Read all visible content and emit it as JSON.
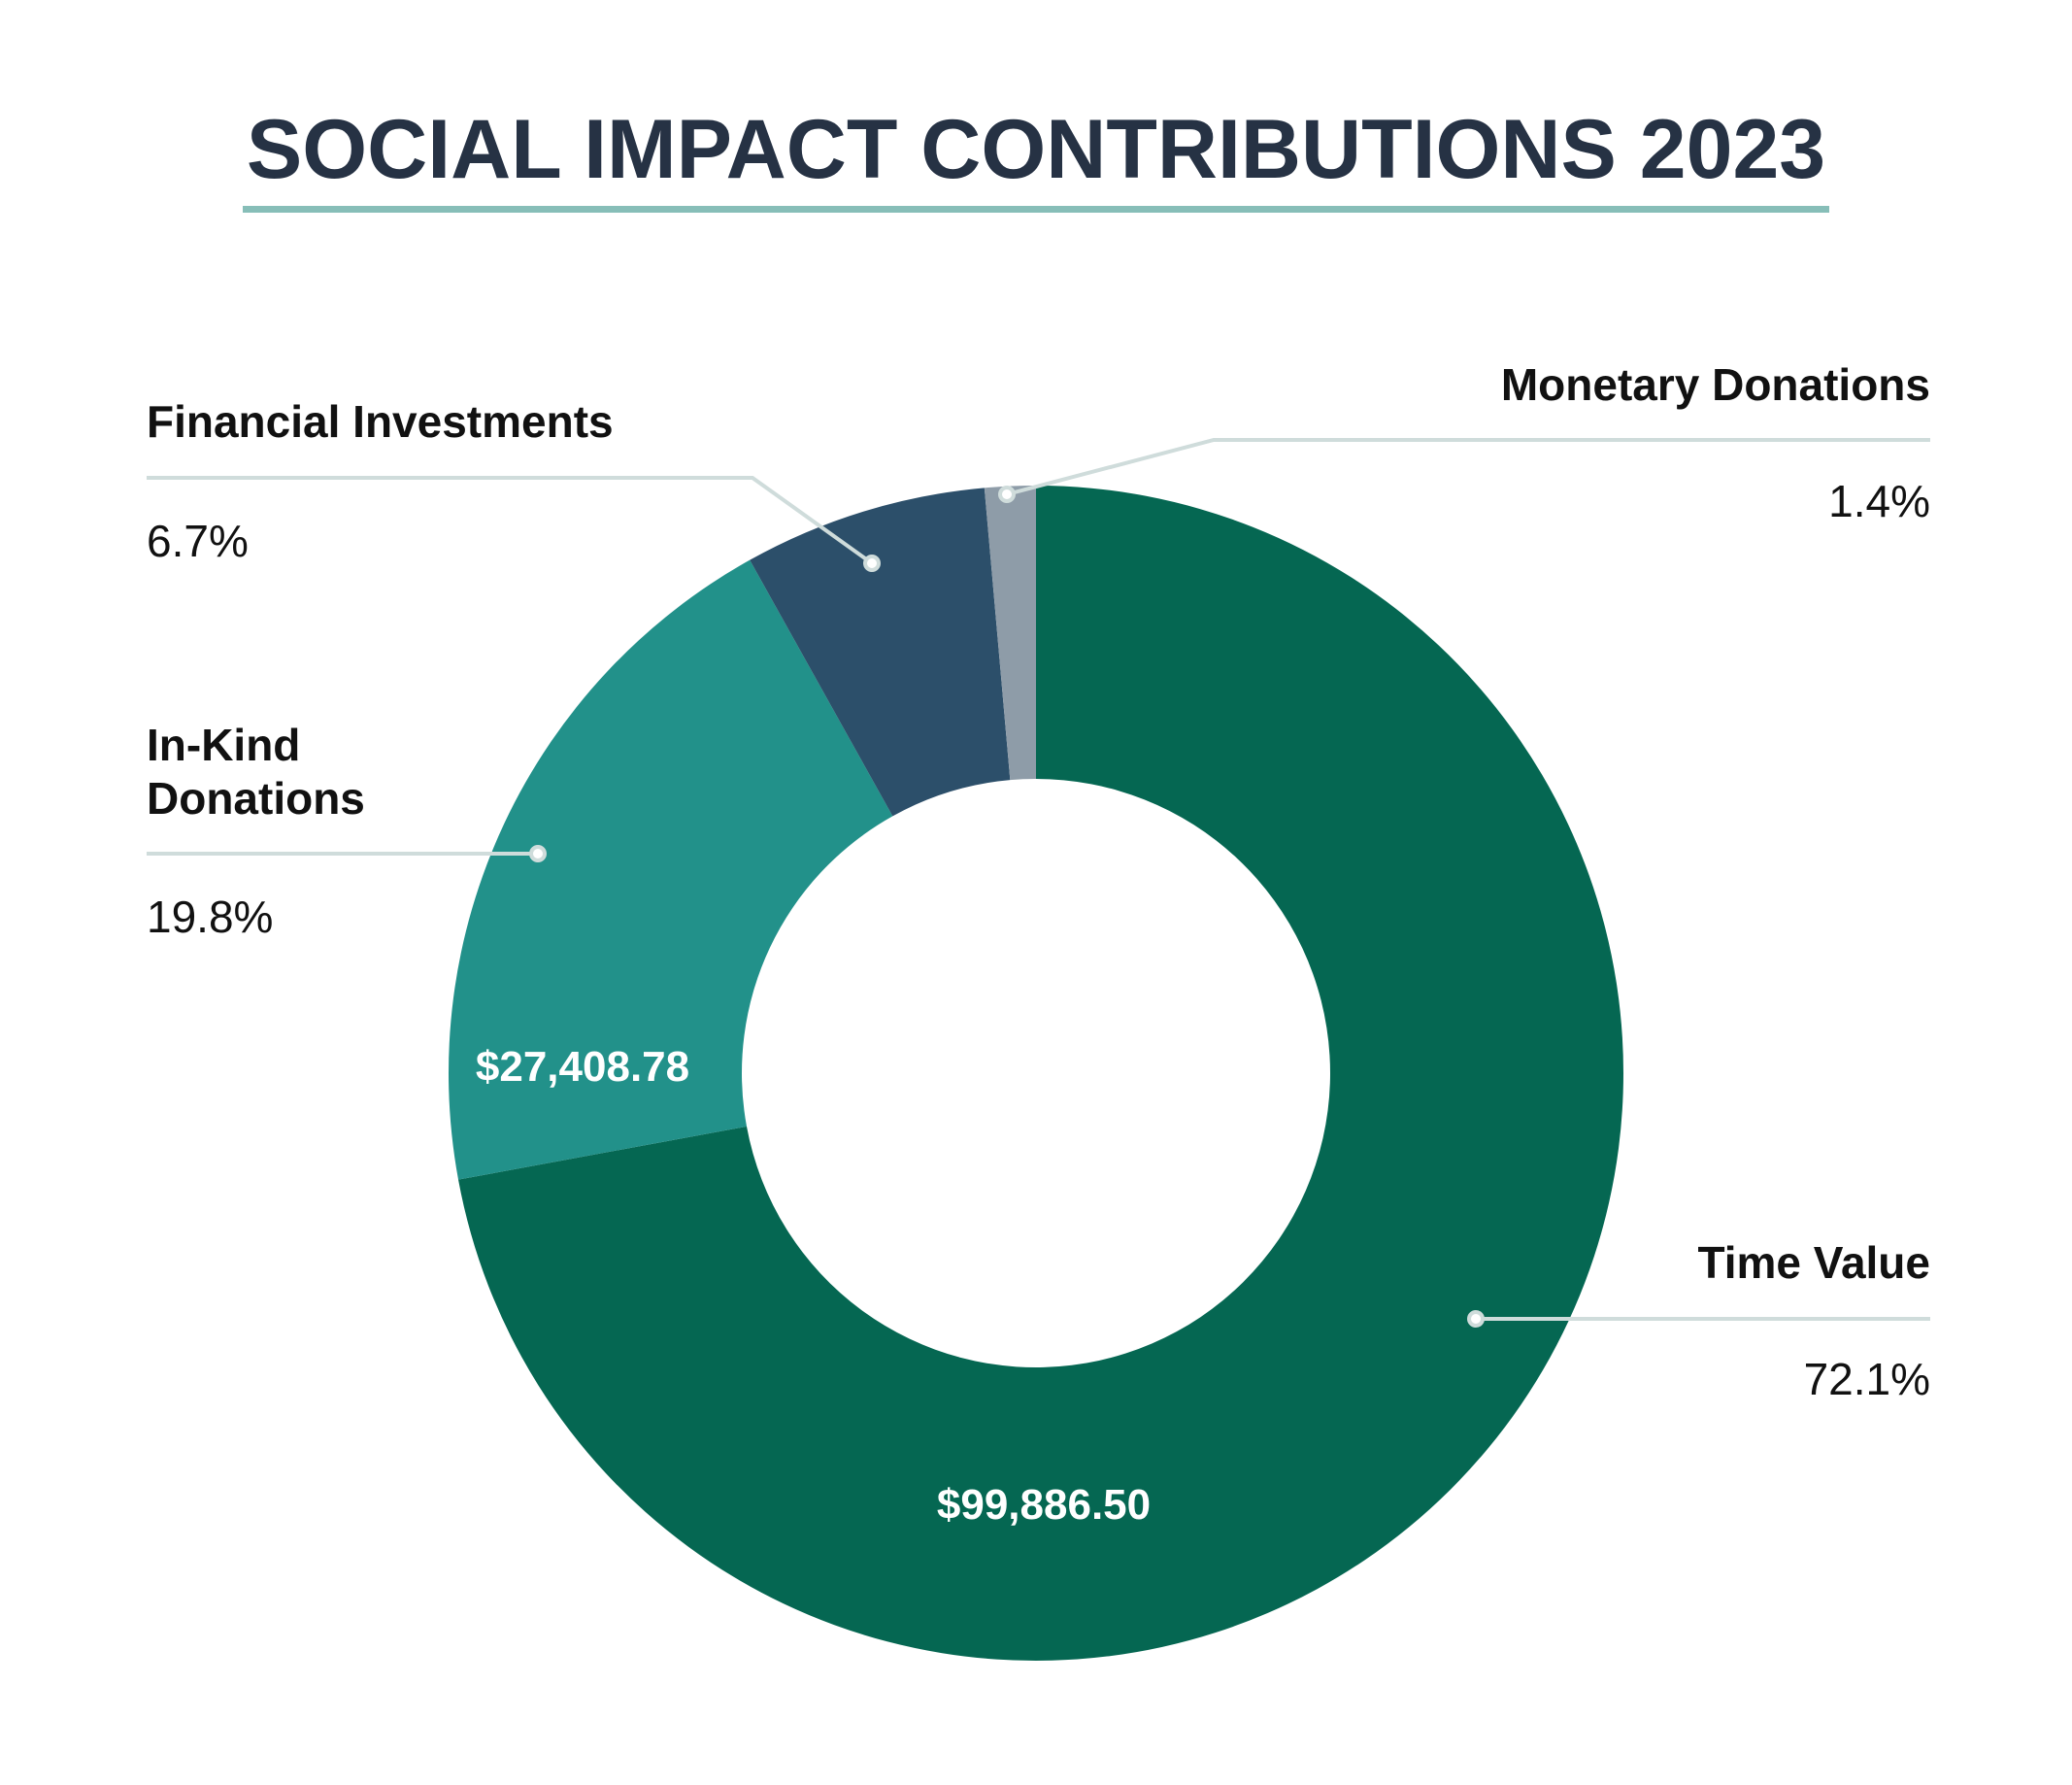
{
  "colors": {
    "title": "#263244",
    "underline": "#87beb8",
    "leader": "#cfdcdb",
    "time_value": "#056752",
    "in_kind": "#22918a",
    "financial": "#2c4f6a",
    "monetary": "#8e9ca8"
  },
  "chart_data": {
    "type": "pie",
    "donut": true,
    "title": "SOCIAL IMPACT CONTRIBUTIONS 2023",
    "slices": [
      {
        "label": "Time Value",
        "percent": 72.1,
        "percent_label": "72.1%",
        "value_label": "$99,886.50",
        "color": "#056752"
      },
      {
        "label": "In-Kind Donations",
        "label_lines": [
          "In-Kind",
          "Donations"
        ],
        "percent": 19.8,
        "percent_label": "19.8%",
        "value_label": "$27,408.78",
        "color": "#22918a"
      },
      {
        "label": "Financial Investments",
        "percent": 6.7,
        "percent_label": "6.7%",
        "value_label": "",
        "color": "#2c4f6a"
      },
      {
        "label": "Monetary Donations",
        "percent": 1.4,
        "percent_label": "1.4%",
        "value_label": "",
        "color": "#8e9ca8"
      }
    ]
  }
}
